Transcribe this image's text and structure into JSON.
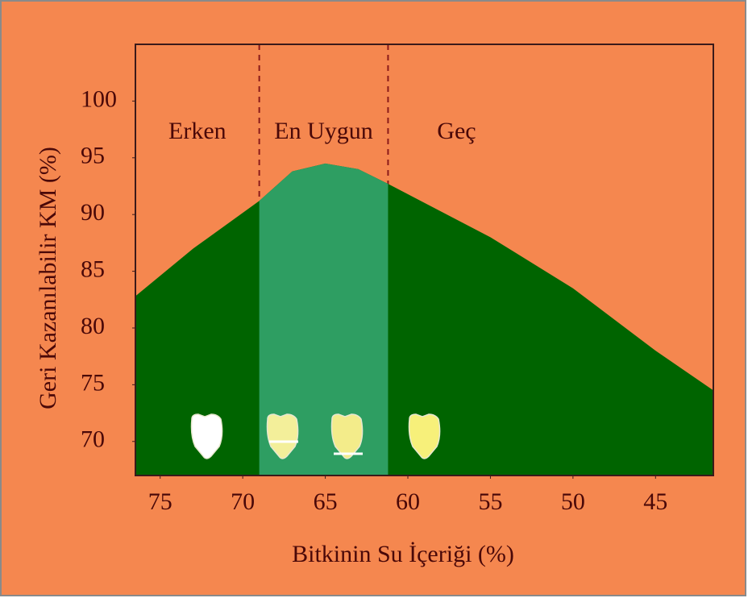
{
  "chart_data": {
    "type": "area",
    "x_label": "Bitkinin Su İçeriği (%)",
    "y_label": "Geri Kazanılabilir KM (%)",
    "x": [
      76.5,
      73,
      69,
      67,
      65,
      63,
      61.2,
      55,
      50,
      45,
      41.5
    ],
    "values": [
      82.8,
      87,
      91.2,
      93.8,
      94.5,
      94,
      92.7,
      88,
      83.5,
      78,
      74.5
    ],
    "color": "#006400",
    "xlim": [
      76.5,
      41.5
    ],
    "xticks": [
      75,
      70,
      65,
      60,
      55,
      50,
      45
    ],
    "ylim": [
      67,
      105
    ],
    "yticks": [
      70,
      75,
      80,
      85,
      90,
      95,
      100
    ],
    "zones": [
      "Erken",
      "En Uygun",
      "Geç"
    ],
    "boundaries": [
      69,
      61.2
    ],
    "optimal_color": "#2e9e62"
  }
}
